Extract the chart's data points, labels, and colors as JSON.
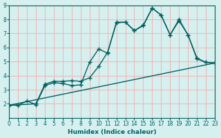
{
  "xlabel": "Humidex (Indice chaleur)",
  "bg_color": "#d6f0f0",
  "grid_color": "#f0b8b8",
  "line_color": "#006060",
  "xlim": [
    0,
    23
  ],
  "ylim": [
    1,
    9
  ],
  "xticks": [
    0,
    1,
    2,
    3,
    4,
    5,
    6,
    7,
    8,
    9,
    10,
    11,
    12,
    13,
    14,
    15,
    16,
    17,
    18,
    19,
    20,
    21,
    22,
    23
  ],
  "yticks": [
    2,
    3,
    4,
    5,
    6,
    7,
    8,
    9
  ],
  "line1_x": [
    0,
    1,
    2,
    3,
    4,
    5,
    6,
    7,
    8,
    9,
    10,
    11,
    12,
    13,
    14,
    15,
    16,
    17,
    18,
    19,
    20,
    21,
    22,
    23
  ],
  "line1_y": [
    1.9,
    1.9,
    2.2,
    1.95,
    3.3,
    3.5,
    3.45,
    3.3,
    3.35,
    4.95,
    5.9,
    5.6,
    7.8,
    7.8,
    7.2,
    7.6,
    8.8,
    8.3,
    6.9,
    8.0,
    6.9,
    5.25,
    4.95,
    4.9
  ],
  "line2_x": [
    0,
    3,
    4,
    5,
    6,
    7,
    8,
    9,
    10,
    11,
    12,
    13,
    14,
    15,
    16,
    17,
    18,
    19,
    20,
    21,
    22,
    23
  ],
  "line2_y": [
    1.9,
    2.0,
    3.4,
    3.6,
    3.6,
    3.65,
    3.6,
    3.85,
    4.65,
    5.65,
    7.75,
    7.8,
    7.2,
    7.55,
    8.8,
    8.3,
    6.9,
    7.9,
    6.9,
    5.2,
    4.95,
    4.9
  ],
  "line3_x": [
    0,
    23
  ],
  "line3_y": [
    1.9,
    4.9
  ]
}
